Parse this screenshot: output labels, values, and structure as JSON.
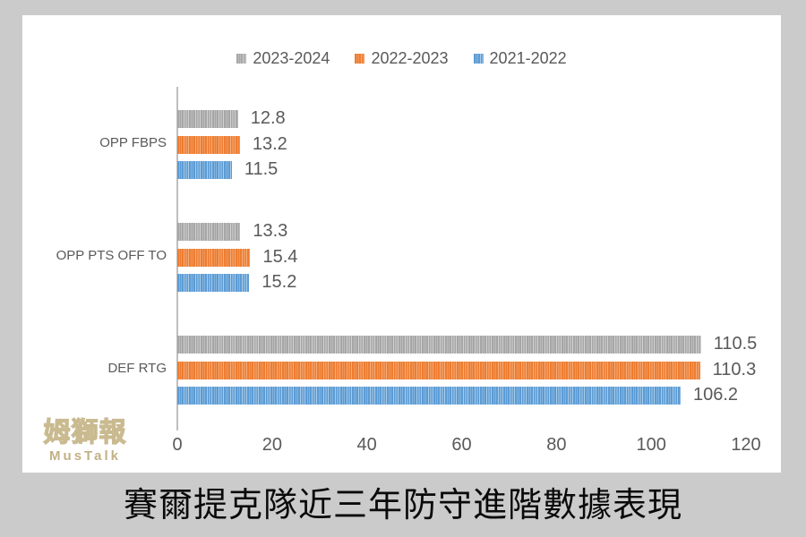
{
  "background_color": "#cbcbcb",
  "panel_color": "#ffffff",
  "title": "賽爾提克隊近三年防守進階數據表現",
  "watermark": {
    "line1": "姆獅報",
    "line2": "MusTalk",
    "color": "#c2b185"
  },
  "text_color": "#595959",
  "axis_color": "#bfbfbf",
  "chart_data": {
    "type": "bar",
    "orientation": "horizontal",
    "pattern": "vertical-stripes",
    "categories": [
      "OPP FBPS",
      "OPP PTS OFF TO",
      "DEF RTG"
    ],
    "series": [
      {
        "name": "2023-2024",
        "color": "#a6a6a6",
        "stripe_light": "#d2d2d2",
        "values": [
          12.8,
          13.3,
          110.5
        ]
      },
      {
        "name": "2022-2023",
        "color": "#ed7d31",
        "stripe_light": "#f5ad7c",
        "values": [
          13.2,
          15.4,
          110.3
        ]
      },
      {
        "name": "2021-2022",
        "color": "#5b9bd5",
        "stripe_light": "#a9cce9",
        "values": [
          11.5,
          15.2,
          106.2
        ]
      }
    ],
    "xlim": [
      0,
      120
    ],
    "x_ticks": [
      "0",
      "20",
      "40",
      "60",
      "80",
      "100",
      "120"
    ],
    "legend_position": "top",
    "value_labels": true,
    "grid": false
  }
}
